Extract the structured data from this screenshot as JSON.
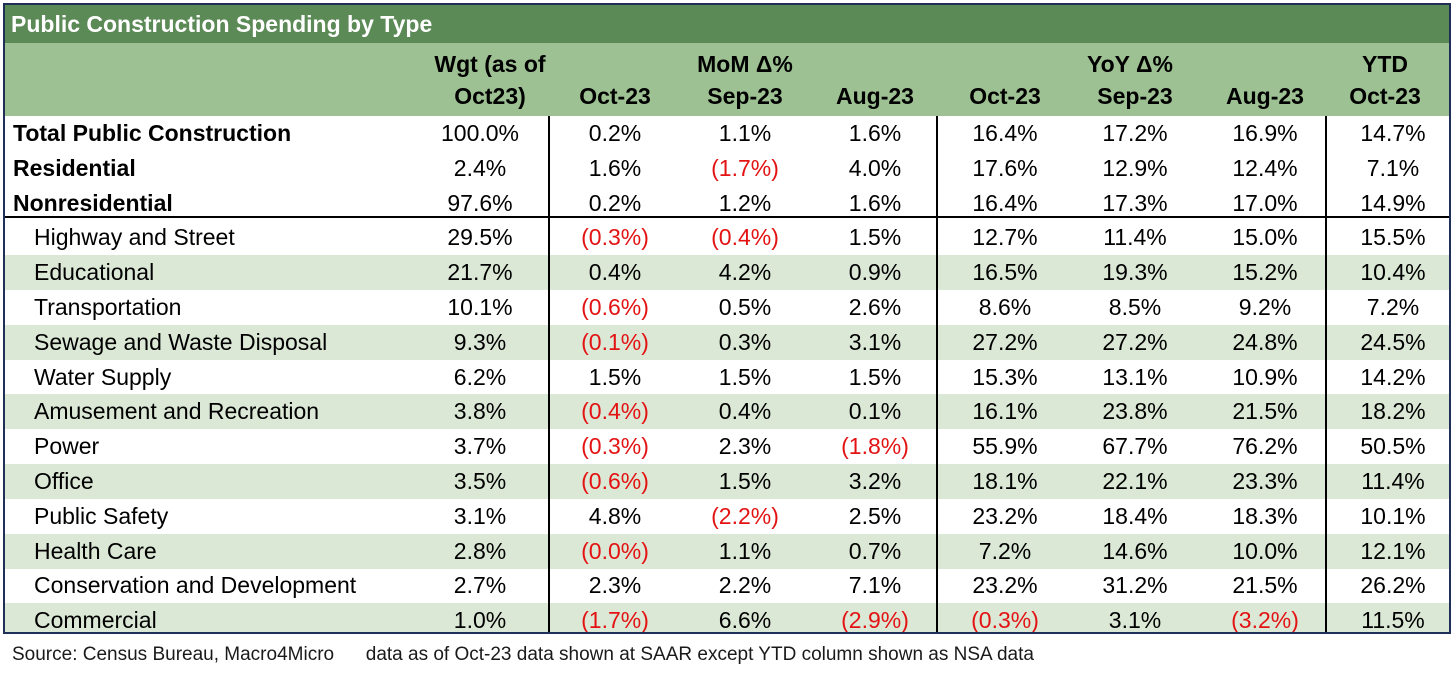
{
  "title": "Public Construction Spending by Type",
  "header": {
    "weight_line1": "Wgt (as of",
    "weight_line2": "Oct23)",
    "mom_group": "MoM Δ%",
    "yoy_group": "YoY Δ%",
    "ytd_group": "YTD",
    "mom_cols": [
      "Oct-23",
      "Sep-23",
      "Aug-23"
    ],
    "yoy_cols": [
      "Oct-23",
      "Sep-23",
      "Aug-23"
    ],
    "ytd_col": "Oct-23"
  },
  "rows": [
    {
      "label": "Total Public Construction",
      "bold": true,
      "values": [
        "100.0%",
        "0.2%",
        "1.1%",
        "1.6%",
        "16.4%",
        "17.2%",
        "16.9%",
        "14.7%"
      ]
    },
    {
      "label": "Residential",
      "bold": true,
      "values": [
        "2.4%",
        "1.6%",
        "(1.7%)",
        "4.0%",
        "17.6%",
        "12.9%",
        "12.4%",
        "7.1%"
      ]
    },
    {
      "label": "Nonresidential",
      "bold": true,
      "values": [
        "97.6%",
        "0.2%",
        "1.2%",
        "1.6%",
        "16.4%",
        "17.3%",
        "17.0%",
        "14.9%"
      ]
    },
    {
      "label": "Highway and Street",
      "values": [
        "29.5%",
        "(0.3%)",
        "(0.4%)",
        "1.5%",
        "12.7%",
        "11.4%",
        "15.0%",
        "15.5%"
      ]
    },
    {
      "label": "Educational",
      "values": [
        "21.7%",
        "0.4%",
        "4.2%",
        "0.9%",
        "16.5%",
        "19.3%",
        "15.2%",
        "10.4%"
      ]
    },
    {
      "label": "Transportation",
      "values": [
        "10.1%",
        "(0.6%)",
        "0.5%",
        "2.6%",
        "8.6%",
        "8.5%",
        "9.2%",
        "7.2%"
      ]
    },
    {
      "label": "Sewage and Waste Disposal",
      "values": [
        "9.3%",
        "(0.1%)",
        "0.3%",
        "3.1%",
        "27.2%",
        "27.2%",
        "24.8%",
        "24.5%"
      ]
    },
    {
      "label": "Water Supply",
      "values": [
        "6.2%",
        "1.5%",
        "1.5%",
        "1.5%",
        "15.3%",
        "13.1%",
        "10.9%",
        "14.2%"
      ]
    },
    {
      "label": "Amusement and Recreation",
      "values": [
        "3.8%",
        "(0.4%)",
        "0.4%",
        "0.1%",
        "16.1%",
        "23.8%",
        "21.5%",
        "18.2%"
      ]
    },
    {
      "label": "Power",
      "values": [
        "3.7%",
        "(0.3%)",
        "2.3%",
        "(1.8%)",
        "55.9%",
        "67.7%",
        "76.2%",
        "50.5%"
      ]
    },
    {
      "label": "Office",
      "values": [
        "3.5%",
        "(0.6%)",
        "1.5%",
        "3.2%",
        "18.1%",
        "22.1%",
        "23.3%",
        "11.4%"
      ]
    },
    {
      "label": "Public Safety",
      "values": [
        "3.1%",
        "4.8%",
        "(2.2%)",
        "2.5%",
        "23.2%",
        "18.4%",
        "18.3%",
        "10.1%"
      ]
    },
    {
      "label": "Health Care",
      "values": [
        "2.8%",
        "(0.0%)",
        "1.1%",
        "0.7%",
        "7.2%",
        "14.6%",
        "10.0%",
        "12.1%"
      ]
    },
    {
      "label": "Conservation and Development",
      "values": [
        "2.7%",
        "2.3%",
        "2.2%",
        "7.1%",
        "23.2%",
        "31.2%",
        "21.5%",
        "26.2%"
      ]
    },
    {
      "label": "Commercial",
      "values": [
        "1.0%",
        "(1.7%)",
        "6.6%",
        "(2.9%)",
        "(0.3%)",
        "3.1%",
        "(3.2%)",
        "11.5%"
      ]
    }
  ],
  "source": "Source: Census Bureau, Macro4Micro      data as of Oct-23 data shown at SAAR except YTD column shown as NSA data",
  "colors": {
    "title_bg": "#5c8a56",
    "header_bg": "#9dc192",
    "stripe": "#dbe8d6",
    "negative": "#e31313",
    "border": "#1f2f57"
  }
}
